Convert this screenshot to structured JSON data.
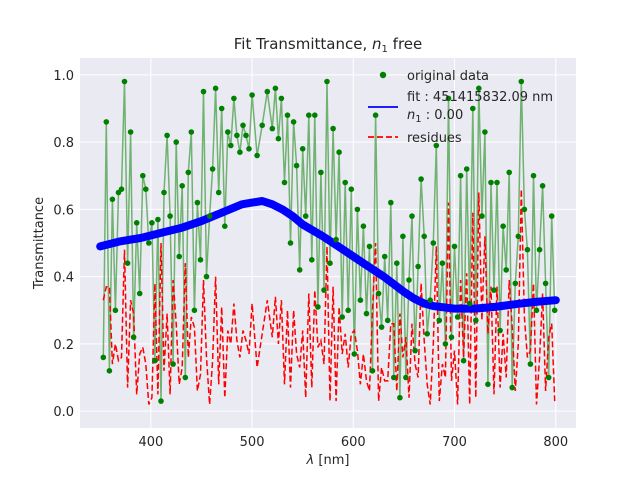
{
  "chart_data": {
    "type": "line",
    "title": "Fit Transmittance, ",
    "title_math": "n",
    "title_math_sub": "1",
    "title_suffix": " free",
    "xlabel_math": "λ",
    "xlabel_suffix": " [nm]",
    "ylabel": "Transmittance",
    "xlim": [
      330,
      820
    ],
    "ylim": [
      -0.05,
      1.05
    ],
    "xticks": [
      400,
      500,
      600,
      700,
      800
    ],
    "yticks": [
      0.0,
      0.2,
      0.4,
      0.6,
      0.8,
      1.0
    ],
    "grid": true,
    "legend_position": "top-right",
    "background_color": "#eaeaf2",
    "grid_color": "#ffffff",
    "colors": {
      "data_marker": "#008000",
      "data_line": "#5aa85a",
      "fit": "#0000ff",
      "residues": "#ff0000"
    },
    "legend": {
      "data_label": "original data",
      "fit_label": "fit : 451415832.09 nm",
      "fit_label_math": "n",
      "fit_label_sub": "1",
      "fit_label_value": " : 0.00",
      "residues_label": "residues"
    },
    "series": [
      {
        "name": "original data",
        "style": "markers+line",
        "x": [
          353,
          356,
          359,
          362,
          365,
          368,
          371,
          374,
          377,
          380,
          383,
          386,
          389,
          392,
          395,
          398,
          401,
          404,
          407,
          410,
          413,
          416,
          419,
          422,
          425,
          428,
          431,
          434,
          437,
          440,
          443,
          446,
          449,
          452,
          455,
          458,
          461,
          464,
          467,
          470,
          473,
          476,
          479,
          482,
          485,
          488,
          491,
          494,
          497,
          500,
          505,
          510,
          515,
          520,
          523,
          526,
          529,
          532,
          535,
          538,
          541,
          544,
          547,
          550,
          553,
          556,
          559,
          562,
          565,
          568,
          571,
          574,
          577,
          580,
          583,
          586,
          589,
          592,
          595,
          598,
          601,
          604,
          607,
          610,
          613,
          616,
          619,
          622,
          625,
          628,
          631,
          634,
          637,
          640,
          643,
          646,
          649,
          652,
          655,
          658,
          661,
          664,
          667,
          670,
          673,
          676,
          679,
          682,
          685,
          688,
          691,
          694,
          697,
          700,
          703,
          706,
          709,
          712,
          715,
          718,
          721,
          724,
          727,
          730,
          733,
          736,
          739,
          742,
          745,
          748,
          751,
          754,
          757,
          760,
          763,
          766,
          769,
          772,
          775,
          778,
          781,
          784,
          787,
          790,
          793,
          796,
          799
        ],
        "y": [
          0.16,
          0.86,
          0.12,
          0.63,
          0.3,
          0.65,
          0.66,
          0.98,
          0.44,
          0.83,
          0.22,
          0.56,
          0.35,
          0.7,
          0.66,
          0.5,
          0.56,
          0.15,
          0.57,
          0.03,
          0.65,
          0.82,
          0.58,
          0.14,
          0.8,
          0.46,
          0.67,
          0.1,
          0.71,
          0.83,
          0.3,
          0.62,
          0.45,
          0.95,
          0.4,
          0.58,
          0.72,
          0.96,
          0.65,
          0.9,
          0.55,
          0.83,
          0.79,
          0.93,
          0.82,
          0.77,
          0.85,
          0.82,
          0.78,
          0.94,
          0.76,
          0.85,
          0.95,
          0.84,
          0.96,
          0.81,
          0.93,
          0.68,
          0.88,
          0.5,
          0.86,
          0.73,
          0.42,
          0.78,
          0.58,
          0.88,
          0.45,
          0.88,
          0.31,
          0.71,
          0.36,
          0.98,
          0.44,
          0.84,
          0.51,
          0.77,
          0.28,
          0.68,
          0.3,
          0.66,
          0.17,
          0.6,
          0.33,
          0.55,
          0.29,
          0.49,
          0.12,
          0.88,
          0.35,
          0.25,
          0.46,
          0.27,
          0.62,
          0.1,
          0.44,
          0.04,
          0.52,
          0.1,
          0.39,
          0.58,
          0.18,
          0.43,
          0.69,
          0.52,
          0.23,
          0.33,
          0.5,
          0.79,
          0.27,
          0.44,
          0.2,
          0.93,
          0.22,
          0.49,
          0.28,
          0.7,
          0.15,
          0.72,
          0.32,
          0.9,
          0.27,
          0.96,
          0.58,
          0.83,
          0.08,
          0.68,
          0.36,
          0.68,
          0.24,
          0.55,
          0.42,
          0.71,
          0.07,
          0.38,
          0.52,
          0.98,
          0.6,
          0.48,
          0.14,
          0.7,
          0.3,
          0.48,
          0.67,
          0.38,
          0.1,
          0.58,
          0.3
        ]
      },
      {
        "name": "fit : 451415832.09 nm",
        "style": "line",
        "x": [
          350,
          370,
          390,
          410,
          430,
          450,
          470,
          490,
          500,
          510,
          520,
          530,
          540,
          550,
          570,
          590,
          610,
          630,
          650,
          660,
          670,
          680,
          700,
          720,
          740,
          760,
          780,
          800
        ],
        "y": [
          0.49,
          0.505,
          0.515,
          0.53,
          0.545,
          0.565,
          0.59,
          0.615,
          0.62,
          0.625,
          0.615,
          0.6,
          0.58,
          0.555,
          0.52,
          0.48,
          0.44,
          0.4,
          0.355,
          0.335,
          0.32,
          0.312,
          0.305,
          0.305,
          0.31,
          0.318,
          0.325,
          0.33
        ]
      },
      {
        "name": "residues",
        "style": "dashed-line",
        "x": [
          353,
          356,
          359,
          362,
          365,
          368,
          371,
          374,
          377,
          380,
          383,
          386,
          389,
          392,
          395,
          398,
          401,
          404,
          407,
          410,
          413,
          416,
          419,
          422,
          425,
          428,
          431,
          434,
          437,
          440,
          443,
          446,
          449,
          452,
          455,
          458,
          461,
          464,
          467,
          470,
          473,
          476,
          479,
          482,
          485,
          488,
          491,
          494,
          497,
          500,
          505,
          510,
          515,
          520,
          523,
          526,
          529,
          532,
          535,
          538,
          541,
          544,
          547,
          550,
          553,
          556,
          559,
          562,
          565,
          568,
          571,
          574,
          577,
          580,
          583,
          586,
          589,
          592,
          595,
          598,
          601,
          604,
          607,
          610,
          613,
          616,
          619,
          622,
          625,
          628,
          631,
          634,
          637,
          640,
          643,
          646,
          649,
          652,
          655,
          658,
          661,
          664,
          667,
          670,
          673,
          676,
          679,
          682,
          685,
          688,
          691,
          694,
          697,
          700,
          703,
          706,
          709,
          712,
          715,
          718,
          721,
          724,
          727,
          730,
          733,
          736,
          739,
          742,
          745,
          748,
          751,
          754,
          757,
          760,
          763,
          766,
          769,
          772,
          775,
          778,
          781,
          784,
          787,
          790,
          793,
          796,
          799
        ],
        "y": [
          0.33,
          0.37,
          0.37,
          0.14,
          0.2,
          0.15,
          0.16,
          0.48,
          0.07,
          0.33,
          0.29,
          0.05,
          0.17,
          0.19,
          0.14,
          0.02,
          0.04,
          0.38,
          0.05,
          0.5,
          0.12,
          0.29,
          0.05,
          0.39,
          0.26,
          0.08,
          0.13,
          0.44,
          0.16,
          0.28,
          0.25,
          0.06,
          0.11,
          0.39,
          0.16,
          0.02,
          0.15,
          0.4,
          0.08,
          0.31,
          0.04,
          0.24,
          0.2,
          0.32,
          0.21,
          0.16,
          0.24,
          0.21,
          0.17,
          0.32,
          0.13,
          0.23,
          0.33,
          0.22,
          0.34,
          0.2,
          0.33,
          0.08,
          0.3,
          0.07,
          0.3,
          0.17,
          0.13,
          0.24,
          0.04,
          0.35,
          0.07,
          0.36,
          0.19,
          0.21,
          0.14,
          0.49,
          0.03,
          0.37,
          0.03,
          0.31,
          0.17,
          0.23,
          0.13,
          0.23,
          0.24,
          0.18,
          0.08,
          0.17,
          0.09,
          0.06,
          0.3,
          0.5,
          0.03,
          0.13,
          0.09,
          0.09,
          0.26,
          0.26,
          0.06,
          0.29,
          0.16,
          0.22,
          0.04,
          0.26,
          0.14,
          0.1,
          0.38,
          0.21,
          0.08,
          0.02,
          0.2,
          0.49,
          0.03,
          0.14,
          0.1,
          0.62,
          0.09,
          0.18,
          0.02,
          0.39,
          0.16,
          0.41,
          0.02,
          0.59,
          0.04,
          0.65,
          0.27,
          0.52,
          0.23,
          0.37,
          0.05,
          0.37,
          0.07,
          0.23,
          0.1,
          0.39,
          0.25,
          0.06,
          0.2,
          0.66,
          0.28,
          0.16,
          0.18,
          0.38,
          0.02,
          0.16,
          0.35,
          0.06,
          0.22,
          0.26,
          0.03
        ]
      }
    ]
  }
}
